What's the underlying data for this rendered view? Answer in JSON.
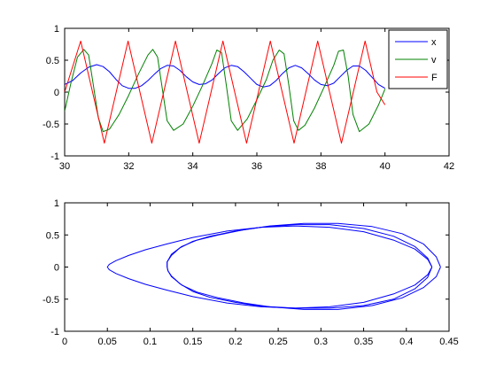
{
  "chart_data": [
    {
      "type": "line",
      "title": "",
      "xlabel": "",
      "ylabel": "",
      "xlim": [
        30,
        42
      ],
      "ylim": [
        -1,
        1
      ],
      "grid": false,
      "legend_position": "top-right",
      "x_ticks": [
        30,
        32,
        34,
        36,
        38,
        40,
        42
      ],
      "x_tick_labels": [
        "30",
        "32",
        "34",
        "36",
        "38",
        "40",
        "42"
      ],
      "y_ticks": [
        -1,
        -0.5,
        0,
        0.5,
        1
      ],
      "y_tick_labels": [
        "-1",
        "-0.5",
        "0",
        "0.5",
        "1"
      ],
      "series": [
        {
          "name": "x",
          "color": "#0000ff",
          "x": [
            30.0,
            30.25,
            30.5,
            30.75,
            31.0,
            31.2,
            31.4,
            31.6,
            31.8,
            32.0,
            32.2,
            32.4,
            32.6,
            32.8,
            33.0,
            33.2,
            33.4,
            33.6,
            33.8,
            34.0,
            34.2,
            34.4,
            34.6,
            34.8,
            35.0,
            35.2,
            35.4,
            35.6,
            35.8,
            36.0,
            36.2,
            36.4,
            36.6,
            36.8,
            37.0,
            37.2,
            37.4,
            37.6,
            37.8,
            38.0,
            38.2,
            38.4,
            38.6,
            38.8,
            39.0,
            39.2,
            39.4,
            39.6,
            39.8,
            40.0
          ],
          "values": [
            0.12,
            0.18,
            0.3,
            0.39,
            0.43,
            0.4,
            0.32,
            0.2,
            0.1,
            0.06,
            0.06,
            0.1,
            0.18,
            0.28,
            0.37,
            0.42,
            0.41,
            0.34,
            0.24,
            0.16,
            0.12,
            0.13,
            0.19,
            0.29,
            0.38,
            0.42,
            0.4,
            0.32,
            0.22,
            0.12,
            0.08,
            0.1,
            0.18,
            0.29,
            0.38,
            0.42,
            0.38,
            0.29,
            0.19,
            0.12,
            0.1,
            0.14,
            0.24,
            0.34,
            0.41,
            0.41,
            0.34,
            0.23,
            0.12,
            0.06
          ]
        },
        {
          "name": "v",
          "color": "#008000",
          "x": [
            30.0,
            30.2,
            30.4,
            30.6,
            30.75,
            30.9,
            31.05,
            31.2,
            31.4,
            31.7,
            32.0,
            32.3,
            32.6,
            32.75,
            32.9,
            33.05,
            33.2,
            33.4,
            33.7,
            34.0,
            34.3,
            34.6,
            34.75,
            34.9,
            35.05,
            35.2,
            35.4,
            35.7,
            36.0,
            36.3,
            36.5,
            36.7,
            36.85,
            37.0,
            37.15,
            37.3,
            37.5,
            37.8,
            38.1,
            38.4,
            38.55,
            38.7,
            38.85,
            39.0,
            39.2,
            39.5,
            39.8,
            40.0
          ],
          "values": [
            -0.3,
            0.15,
            0.55,
            0.67,
            0.58,
            0.1,
            -0.4,
            -0.62,
            -0.58,
            -0.35,
            -0.05,
            0.28,
            0.58,
            0.67,
            0.55,
            0.05,
            -0.45,
            -0.6,
            -0.5,
            -0.22,
            0.1,
            0.45,
            0.66,
            0.62,
            0.1,
            -0.45,
            -0.6,
            -0.42,
            -0.12,
            0.2,
            0.5,
            0.66,
            0.6,
            0.1,
            -0.45,
            -0.6,
            -0.52,
            -0.25,
            0.08,
            0.42,
            0.64,
            0.66,
            0.25,
            -0.35,
            -0.62,
            -0.5,
            -0.2,
            0.05
          ]
        },
        {
          "name": "F",
          "color": "#ff0000",
          "x": [
            30.0,
            30.5,
            30.87,
            31.24,
            31.61,
            31.98,
            32.35,
            32.72,
            33.09,
            33.46,
            33.83,
            34.2,
            34.57,
            34.94,
            35.31,
            35.68,
            36.05,
            36.42,
            36.79,
            37.16,
            37.53,
            37.9,
            38.27,
            38.64,
            39.01,
            39.38,
            39.75,
            40.0
          ],
          "values": [
            0.0,
            0.8,
            0.0,
            -0.8,
            0.0,
            0.8,
            0.0,
            -0.8,
            0.0,
            0.8,
            0.0,
            -0.8,
            0.0,
            0.8,
            0.0,
            -0.8,
            0.0,
            0.8,
            0.0,
            -0.8,
            0.0,
            0.8,
            0.0,
            -0.8,
            0.0,
            0.8,
            0.0,
            -0.2
          ]
        }
      ]
    },
    {
      "type": "line",
      "title": "",
      "xlabel": "",
      "ylabel": "",
      "xlim": [
        0,
        0.45
      ],
      "ylim": [
        -1,
        1
      ],
      "grid": false,
      "x_ticks": [
        0,
        0.05,
        0.1,
        0.15,
        0.2,
        0.25,
        0.3,
        0.35,
        0.4,
        0.45
      ],
      "x_tick_labels": [
        "0",
        "0.05",
        "0.1",
        "0.15",
        "0.2",
        "0.25",
        "0.3",
        "0.35",
        "0.4",
        "0.45"
      ],
      "y_ticks": [
        -1,
        -0.5,
        0,
        0.5,
        1
      ],
      "y_tick_labels": [
        "-1",
        "-0.5",
        "0",
        "0.5",
        "1"
      ],
      "series": [
        {
          "color": "#0000ff",
          "x": [
            0.43,
            0.425,
            0.41,
            0.385,
            0.35,
            0.31,
            0.27,
            0.23,
            0.19,
            0.15,
            0.12,
            0.095,
            0.075,
            0.06,
            0.052,
            0.05,
            0.052,
            0.06,
            0.075,
            0.095,
            0.12,
            0.15,
            0.19,
            0.23,
            0.27,
            0.31,
            0.35,
            0.385,
            0.41,
            0.425,
            0.43
          ],
          "values": [
            0.0,
            0.12,
            0.28,
            0.42,
            0.55,
            0.62,
            0.64,
            0.62,
            0.56,
            0.46,
            0.36,
            0.27,
            0.18,
            0.1,
            0.04,
            0.0,
            -0.04,
            -0.1,
            -0.18,
            -0.27,
            -0.36,
            -0.46,
            -0.56,
            -0.62,
            -0.64,
            -0.62,
            -0.55,
            -0.42,
            -0.28,
            -0.12,
            0.0
          ]
        },
        {
          "color": "#0000ff",
          "x": [
            0.43,
            0.425,
            0.41,
            0.385,
            0.35,
            0.31,
            0.27,
            0.23,
            0.2,
            0.17,
            0.15,
            0.135,
            0.125,
            0.12,
            0.12,
            0.121,
            0.125,
            0.135,
            0.15,
            0.17,
            0.2,
            0.23,
            0.27,
            0.31,
            0.35,
            0.385,
            0.41,
            0.425,
            0.43
          ],
          "values": [
            0.0,
            0.14,
            0.32,
            0.48,
            0.6,
            0.66,
            0.66,
            0.62,
            0.56,
            0.48,
            0.4,
            0.3,
            0.18,
            0.08,
            0.0,
            -0.06,
            -0.14,
            -0.26,
            -0.38,
            -0.47,
            -0.55,
            -0.61,
            -0.64,
            -0.64,
            -0.6,
            -0.5,
            -0.34,
            -0.16,
            0.0
          ]
        },
        {
          "color": "#0000ff",
          "x": [
            0.44,
            0.435,
            0.42,
            0.395,
            0.36,
            0.32,
            0.28,
            0.24,
            0.21,
            0.18,
            0.155,
            0.137,
            0.125,
            0.12,
            0.12,
            0.121,
            0.125,
            0.137,
            0.155,
            0.18,
            0.21,
            0.24,
            0.28,
            0.32,
            0.36,
            0.395,
            0.42,
            0.435,
            0.44
          ],
          "values": [
            0.0,
            0.16,
            0.36,
            0.52,
            0.63,
            0.68,
            0.68,
            0.64,
            0.58,
            0.5,
            0.42,
            0.32,
            0.2,
            0.08,
            0.0,
            -0.06,
            -0.15,
            -0.28,
            -0.39,
            -0.48,
            -0.56,
            -0.62,
            -0.66,
            -0.66,
            -0.6,
            -0.48,
            -0.32,
            -0.15,
            0.0
          ]
        }
      ]
    }
  ]
}
